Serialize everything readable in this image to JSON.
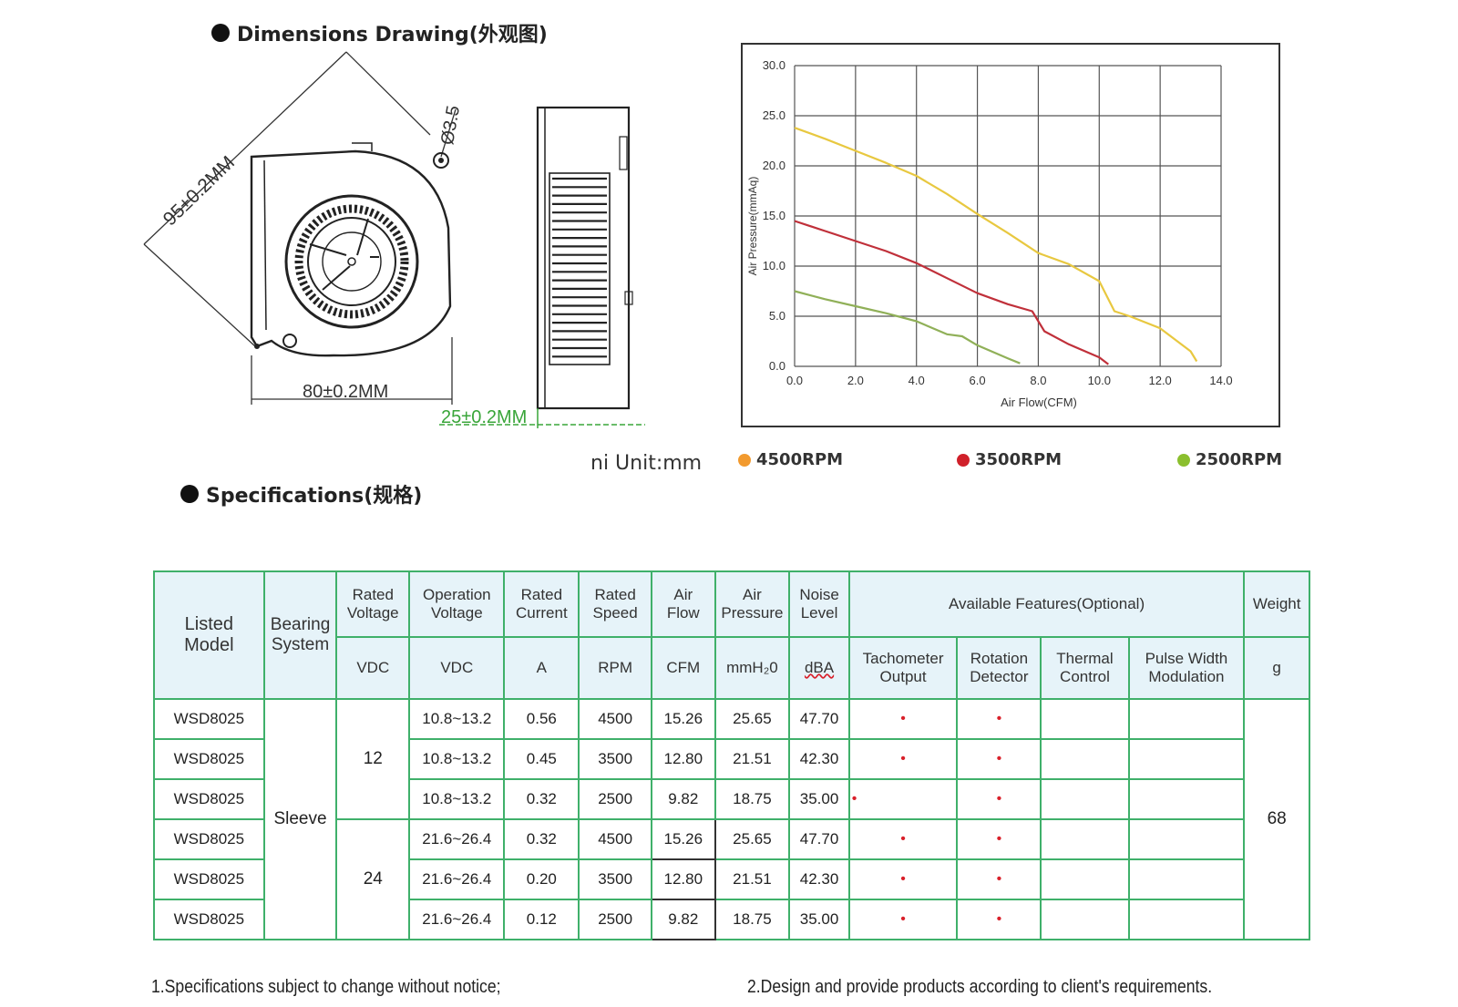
{
  "dimensions": {
    "title": "Dimensions Drawing(外观图)",
    "label_diagonal": "95±0.2MM",
    "label_hole": "Ø3.5",
    "label_width": "80±0.2MM",
    "label_thickness": "25±0.2MM",
    "unit_label": "ni Unit:mm"
  },
  "chart_data": {
    "type": "line",
    "xlabel": "Air Flow(CFM)",
    "ylabel": "Air Pressure(mmAq)",
    "xlim": [
      0,
      14
    ],
    "ylim": [
      0,
      30
    ],
    "x_ticks": [
      "0.0",
      "2.0",
      "4.0",
      "6.0",
      "8.0",
      "10.0",
      "12.0",
      "14.0"
    ],
    "y_ticks": [
      "0.0",
      "5.0",
      "10.0",
      "15.0",
      "20.0",
      "25.0",
      "30.0"
    ],
    "grid": true,
    "legend_position": "bottom",
    "series": [
      {
        "name": "4500RPM",
        "color": "#e8c840",
        "legend_color": "#f29a2e",
        "x": [
          0,
          1,
          2,
          3,
          4,
          5,
          6,
          7,
          8,
          9,
          10,
          10.5,
          11,
          12,
          13,
          13.2
        ],
        "y": [
          23.8,
          22.7,
          21.5,
          20.3,
          19,
          17.2,
          15.2,
          13.3,
          11.3,
          10.2,
          8.5,
          5.5,
          5,
          3.8,
          1.5,
          0.5
        ]
      },
      {
        "name": "3500RPM",
        "color": "#c0303a",
        "legend_color": "#d0202a",
        "x": [
          0,
          1,
          2,
          3,
          4,
          5,
          6,
          7,
          7.8,
          8.2,
          9,
          10,
          10.3
        ],
        "y": [
          14.5,
          13.5,
          12.5,
          11.5,
          10.3,
          8.8,
          7.3,
          6.2,
          5.5,
          3.5,
          2.2,
          0.9,
          0.2
        ]
      },
      {
        "name": "2500RPM",
        "color": "#90b058",
        "legend_color": "#8bbf2e",
        "x": [
          0,
          1,
          2,
          3,
          4,
          5,
          5.5,
          6,
          7,
          7.4
        ],
        "y": [
          7.5,
          6.7,
          6,
          5.3,
          4.5,
          3.2,
          3,
          2.1,
          0.8,
          0.3
        ]
      }
    ]
  },
  "specs": {
    "title": "Specifications(规格)",
    "headers": {
      "listed_model": "Listed\nModel",
      "bearing_system": "Bearing\nSystem",
      "rated_voltage": "Rated\nVoltage",
      "operation_voltage": "Operation\nVoltage",
      "rated_current": "Rated\nCurrent",
      "rated_speed": "Rated\nSpeed",
      "air_flow": "Air\nFlow",
      "air_pressure": "Air\nPressure",
      "noise_level": "Noise\nLevel",
      "available_features": "Available Features(Optional)",
      "weight": "Weight"
    },
    "units": {
      "rated_voltage": "VDC",
      "operation_voltage": "VDC",
      "rated_current": "A",
      "rated_speed": "RPM",
      "air_flow": "CFM",
      "air_pressure": "mmH₂0",
      "noise_level": "dBA",
      "tachometer": "Tachometer\nOutput",
      "rotation": "Rotation\nDetector",
      "thermal": "Thermal\nControl",
      "pwm": "Pulse Width\nModulation",
      "weight": "g"
    },
    "bearing": "Sleeve",
    "voltage_12": "12",
    "voltage_24": "24",
    "weight_value": "68",
    "feature_mark": "•",
    "rows": [
      {
        "model": "WSD8025",
        "op_voltage": "10.8~13.2",
        "current": "0.56",
        "speed": "4500",
        "flow": "15.26",
        "pressure": "25.65",
        "noise": "47.70",
        "tach": "•",
        "rot": "•"
      },
      {
        "model": "WSD8025",
        "op_voltage": "10.8~13.2",
        "current": "0.45",
        "speed": "3500",
        "flow": "12.80",
        "pressure": "21.51",
        "noise": "42.30",
        "tach": "•",
        "rot": "•"
      },
      {
        "model": "WSD8025",
        "op_voltage": "10.8~13.2",
        "current": "0.32",
        "speed": "2500",
        "flow": "9.82",
        "pressure": "18.75",
        "noise": "35.00",
        "tach": "•",
        "rot": "•"
      },
      {
        "model": "WSD8025",
        "op_voltage": "21.6~26.4",
        "current": "0.32",
        "speed": "4500",
        "flow": "15.26",
        "pressure": "25.65",
        "noise": "47.70",
        "tach": "•",
        "rot": "•"
      },
      {
        "model": "WSD8025",
        "op_voltage": "21.6~26.4",
        "current": "0.20",
        "speed": "3500",
        "flow": "12.80",
        "pressure": "21.51",
        "noise": "42.30",
        "tach": "•",
        "rot": "•"
      },
      {
        "model": "WSD8025",
        "op_voltage": "21.6~26.4",
        "current": "0.12",
        "speed": "2500",
        "flow": "9.82",
        "pressure": "18.75",
        "noise": "35.00",
        "tach": "•",
        "rot": "•"
      }
    ]
  },
  "footnotes": {
    "left": "1.Specifications subject to change without notice;",
    "right": "2.Design and provide products according to client's requirements."
  }
}
